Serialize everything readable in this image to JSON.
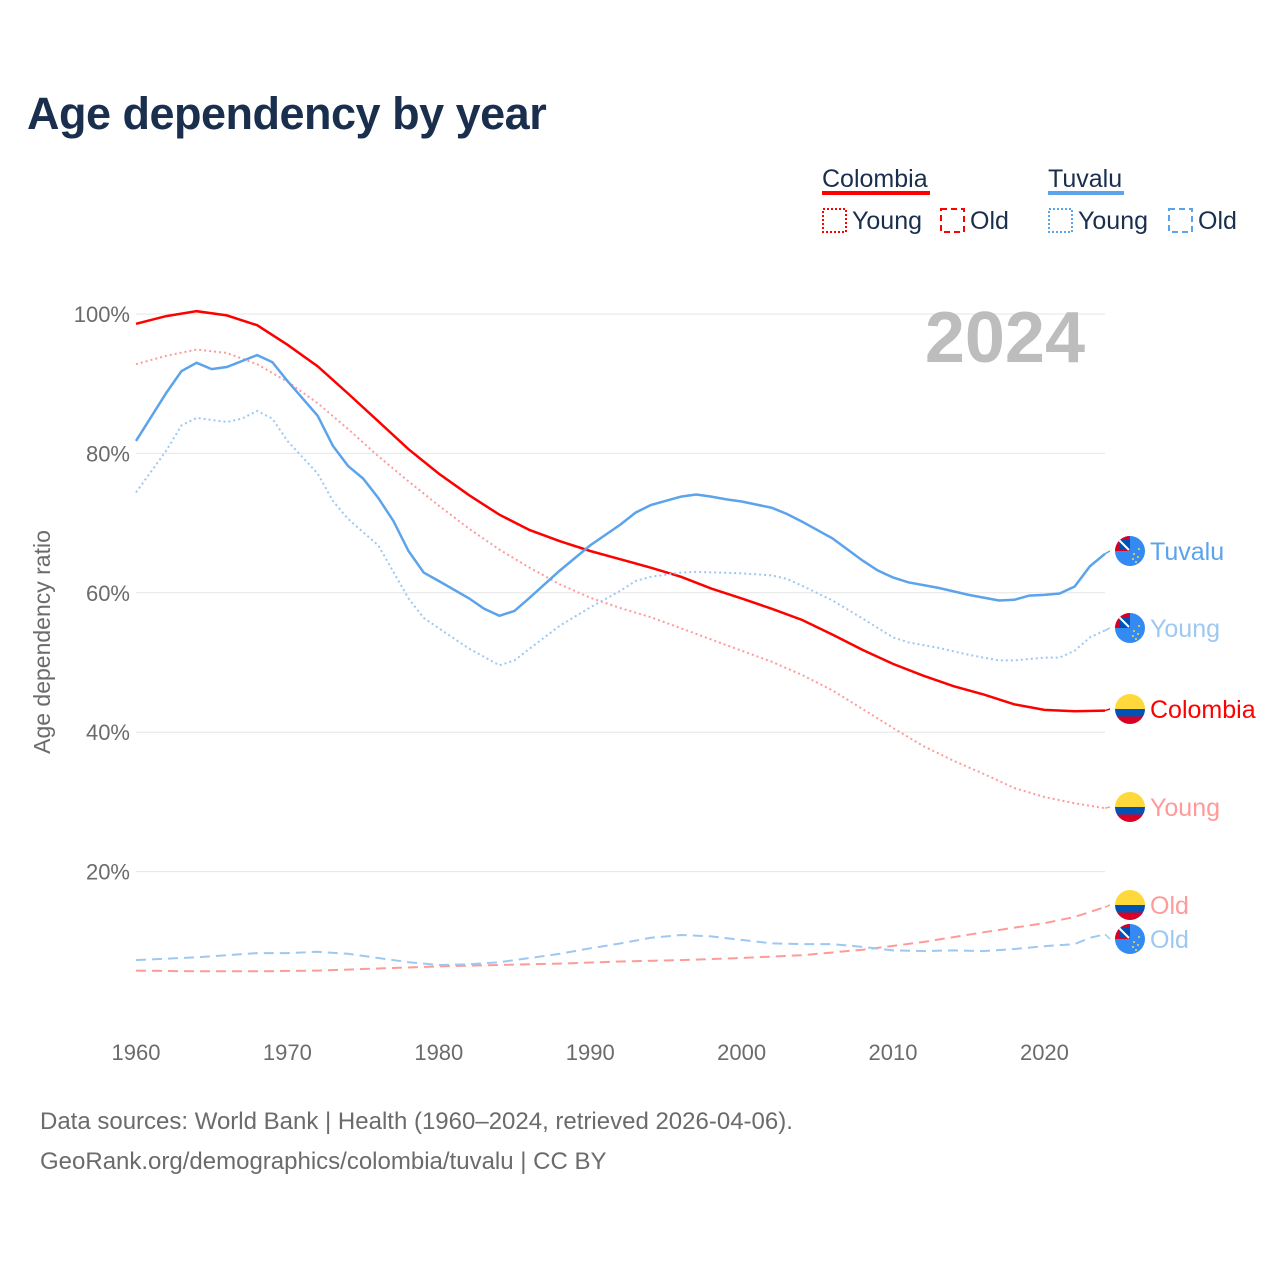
{
  "title": "Age dependency by year",
  "footer": {
    "line1": "Data sources: World Bank | Health (1960–2024, retrieved 2026-04-06).",
    "line2": "GeoRank.org/demographics/colombia/tuvalu | CC BY"
  },
  "chart_data": {
    "type": "line",
    "title": "Age dependency by year",
    "xlabel": "",
    "ylabel": "Age dependency ratio",
    "year_label": "2024",
    "xlim": [
      1960,
      2024
    ],
    "ylim": [
      0,
      100
    ],
    "x_ticks": [
      "1960",
      "1970",
      "1980",
      "1990",
      "2000",
      "2010",
      "2020"
    ],
    "y_ticks": [
      "20%",
      "40%",
      "60%",
      "80%",
      "100%"
    ],
    "grid": true,
    "legend": {
      "placement": "top-right",
      "groups": [
        {
          "country": "Colombia",
          "color": "#ff0000",
          "items": [
            "Young",
            "Old"
          ]
        },
        {
          "country": "Tuvalu",
          "color": "#5ba3eb",
          "items": [
            "Young",
            "Old"
          ]
        }
      ]
    },
    "series": [
      {
        "name": "Colombia",
        "end_label": "Colombia",
        "country": "Colombia",
        "kind": "total",
        "color": "#ff0000",
        "dash": "solid",
        "points": [
          [
            1960,
            98.6
          ],
          [
            1962,
            99.7
          ],
          [
            1964,
            100.4
          ],
          [
            1966,
            99.8
          ],
          [
            1968,
            98.4
          ],
          [
            1970,
            95.6
          ],
          [
            1972,
            92.5
          ],
          [
            1974,
            88.6
          ],
          [
            1976,
            84.6
          ],
          [
            1978,
            80.6
          ],
          [
            1980,
            77.1
          ],
          [
            1982,
            74
          ],
          [
            1984,
            71.2
          ],
          [
            1986,
            69
          ],
          [
            1988,
            67.4
          ],
          [
            1990,
            66
          ],
          [
            1992,
            64.8
          ],
          [
            1994,
            63.6
          ],
          [
            1996,
            62.3
          ],
          [
            1998,
            60.6
          ],
          [
            2000,
            59.2
          ],
          [
            2002,
            57.7
          ],
          [
            2004,
            56.1
          ],
          [
            2006,
            54
          ],
          [
            2008,
            51.8
          ],
          [
            2010,
            49.8
          ],
          [
            2012,
            48.1
          ],
          [
            2014,
            46.6
          ],
          [
            2016,
            45.4
          ],
          [
            2018,
            44
          ],
          [
            2020,
            43.2
          ],
          [
            2022,
            43
          ],
          [
            2024,
            43.1
          ]
        ]
      },
      {
        "name": "Colombia Young",
        "end_label": "Young",
        "country": "Colombia",
        "kind": "young",
        "color": "#ff9a9a",
        "dash": "dotted",
        "points": [
          [
            1960,
            92.8
          ],
          [
            1962,
            94
          ],
          [
            1964,
            94.9
          ],
          [
            1966,
            94.4
          ],
          [
            1968,
            92.8
          ],
          [
            1970,
            90.3
          ],
          [
            1972,
            87.2
          ],
          [
            1974,
            83.5
          ],
          [
            1976,
            79.6
          ],
          [
            1978,
            76
          ],
          [
            1980,
            72.5
          ],
          [
            1982,
            69.2
          ],
          [
            1984,
            66.2
          ],
          [
            1986,
            63.6
          ],
          [
            1988,
            61.2
          ],
          [
            1990,
            59.3
          ],
          [
            1992,
            57.8
          ],
          [
            1994,
            56.5
          ],
          [
            1996,
            54.9
          ],
          [
            1998,
            53.3
          ],
          [
            2000,
            51.7
          ],
          [
            2002,
            50.1
          ],
          [
            2004,
            48.2
          ],
          [
            2006,
            46
          ],
          [
            2008,
            43.3
          ],
          [
            2010,
            40.6
          ],
          [
            2012,
            38
          ],
          [
            2014,
            35.9
          ],
          [
            2016,
            34
          ],
          [
            2018,
            32
          ],
          [
            2020,
            30.7
          ],
          [
            2022,
            29.8
          ],
          [
            2024,
            29.1
          ]
        ]
      },
      {
        "name": "Colombia Old",
        "end_label": "Old",
        "country": "Colombia",
        "kind": "old",
        "color": "#ff9a9a",
        "dash": "dashed",
        "points": [
          [
            1960,
            5.8
          ],
          [
            1964,
            5.7
          ],
          [
            1968,
            5.7
          ],
          [
            1972,
            5.8
          ],
          [
            1976,
            6.1
          ],
          [
            1980,
            6.4
          ],
          [
            1984,
            6.6
          ],
          [
            1988,
            6.8
          ],
          [
            1992,
            7.1
          ],
          [
            1996,
            7.3
          ],
          [
            2000,
            7.6
          ],
          [
            2004,
            8.0
          ],
          [
            2008,
            8.8
          ],
          [
            2012,
            9.9
          ],
          [
            2016,
            11.3
          ],
          [
            2020,
            12.6
          ],
          [
            2022,
            13.5
          ],
          [
            2024,
            14.9
          ]
        ]
      },
      {
        "name": "Tuvalu",
        "end_label": "Tuvalu",
        "country": "Tuvalu",
        "kind": "total",
        "color": "#5ba3eb",
        "dash": "solid",
        "points": [
          [
            1960,
            81.8
          ],
          [
            1962,
            88.7
          ],
          [
            1963,
            91.8
          ],
          [
            1964,
            93
          ],
          [
            1965,
            92.1
          ],
          [
            1966,
            92.4
          ],
          [
            1968,
            94.1
          ],
          [
            1969,
            93.1
          ],
          [
            1970,
            90.4
          ],
          [
            1972,
            85.4
          ],
          [
            1973,
            81.1
          ],
          [
            1974,
            78.2
          ],
          [
            1975,
            76.4
          ],
          [
            1976,
            73.6
          ],
          [
            1977,
            70.3
          ],
          [
            1978,
            66
          ],
          [
            1979,
            62.9
          ],
          [
            1980,
            61.7
          ],
          [
            1982,
            59.2
          ],
          [
            1983,
            57.7
          ],
          [
            1984,
            56.7
          ],
          [
            1985,
            57.4
          ],
          [
            1986,
            59.3
          ],
          [
            1988,
            63.2
          ],
          [
            1990,
            66.8
          ],
          [
            1992,
            69.8
          ],
          [
            1993,
            71.5
          ],
          [
            1994,
            72.6
          ],
          [
            1996,
            73.8
          ],
          [
            1997,
            74.1
          ],
          [
            1998,
            73.8
          ],
          [
            1999,
            73.4
          ],
          [
            2000,
            73.1
          ],
          [
            2002,
            72.2
          ],
          [
            2003,
            71.3
          ],
          [
            2004,
            70.2
          ],
          [
            2006,
            67.8
          ],
          [
            2008,
            64.6
          ],
          [
            2009,
            63.2
          ],
          [
            2010,
            62.2
          ],
          [
            2011,
            61.5
          ],
          [
            2013,
            60.7
          ],
          [
            2015,
            59.7
          ],
          [
            2017,
            58.9
          ],
          [
            2018,
            59
          ],
          [
            2019,
            59.6
          ],
          [
            2020,
            59.7
          ],
          [
            2021,
            59.9
          ],
          [
            2022,
            60.9
          ],
          [
            2023,
            63.8
          ],
          [
            2024,
            65.6
          ]
        ]
      },
      {
        "name": "Tuvalu Young",
        "end_label": "Young",
        "country": "Tuvalu",
        "kind": "young",
        "color": "#9cc8f2",
        "dash": "dotted",
        "points": [
          [
            1960,
            74.4
          ],
          [
            1962,
            80.4
          ],
          [
            1963,
            84
          ],
          [
            1964,
            85.1
          ],
          [
            1966,
            84.5
          ],
          [
            1967,
            85
          ],
          [
            1968,
            86.1
          ],
          [
            1969,
            85
          ],
          [
            1970,
            81.8
          ],
          [
            1972,
            77.1
          ],
          [
            1973,
            73.2
          ],
          [
            1974,
            70.6
          ],
          [
            1976,
            66.8
          ],
          [
            1978,
            59.2
          ],
          [
            1979,
            56.4
          ],
          [
            1980,
            54.9
          ],
          [
            1982,
            52
          ],
          [
            1984,
            49.6
          ],
          [
            1985,
            50.3
          ],
          [
            1986,
            52
          ],
          [
            1988,
            55.3
          ],
          [
            1990,
            57.9
          ],
          [
            1992,
            60.3
          ],
          [
            1993,
            61.7
          ],
          [
            1994,
            62.3
          ],
          [
            1996,
            62.9
          ],
          [
            1997,
            63
          ],
          [
            2000,
            62.8
          ],
          [
            2002,
            62.5
          ],
          [
            2003,
            62
          ],
          [
            2004,
            61
          ],
          [
            2006,
            58.9
          ],
          [
            2008,
            56.3
          ],
          [
            2010,
            53.6
          ],
          [
            2011,
            52.9
          ],
          [
            2013,
            52.1
          ],
          [
            2015,
            51.1
          ],
          [
            2017,
            50.3
          ],
          [
            2018,
            50.3
          ],
          [
            2020,
            50.7
          ],
          [
            2021,
            50.7
          ],
          [
            2022,
            51.7
          ],
          [
            2023,
            53.6
          ],
          [
            2024,
            54.6
          ]
        ]
      },
      {
        "name": "Tuvalu Old",
        "end_label": "Old",
        "country": "Tuvalu",
        "kind": "old",
        "color": "#9cc8f2",
        "dash": "dashed",
        "points": [
          [
            1960,
            7.3
          ],
          [
            1964,
            7.7
          ],
          [
            1966,
            8
          ],
          [
            1968,
            8.3
          ],
          [
            1970,
            8.3
          ],
          [
            1972,
            8.5
          ],
          [
            1974,
            8.2
          ],
          [
            1976,
            7.6
          ],
          [
            1978,
            7
          ],
          [
            1980,
            6.6
          ],
          [
            1982,
            6.7
          ],
          [
            1984,
            7
          ],
          [
            1986,
            7.6
          ],
          [
            1988,
            8.2
          ],
          [
            1990,
            9
          ],
          [
            1992,
            9.7
          ],
          [
            1994,
            10.5
          ],
          [
            1996,
            10.9
          ],
          [
            1998,
            10.7
          ],
          [
            2000,
            10.2
          ],
          [
            2002,
            9.7
          ],
          [
            2004,
            9.6
          ],
          [
            2006,
            9.6
          ],
          [
            2008,
            9.2
          ],
          [
            2010,
            8.7
          ],
          [
            2012,
            8.6
          ],
          [
            2014,
            8.7
          ],
          [
            2016,
            8.6
          ],
          [
            2018,
            8.9
          ],
          [
            2020,
            9.3
          ],
          [
            2022,
            9.6
          ],
          [
            2023,
            10.5
          ],
          [
            2024,
            11
          ]
        ]
      }
    ]
  }
}
